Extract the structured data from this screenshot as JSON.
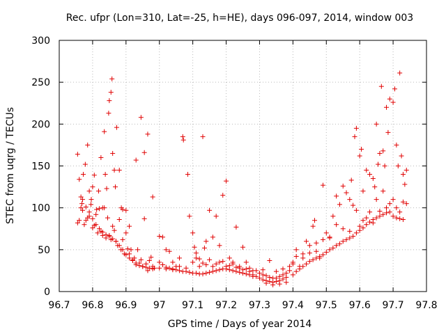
{
  "chart_data": {
    "type": "scatter",
    "title": "Rec. ufpr (Lon=310, Lat=-25, h=HE), days 096-097, 2014, window 003",
    "xlabel": "GPS time / Days of year 2014",
    "ylabel": "STEC from uqrg / TECUs",
    "xlim": [
      96.7,
      97.8
    ],
    "ylim": [
      0,
      300
    ],
    "xticks": [
      "96.7",
      "96.8",
      "96.9",
      "97",
      "97.1",
      "97.2",
      "97.3",
      "97.4",
      "97.5",
      "97.6",
      "97.7",
      "97.8"
    ],
    "xtick_values": [
      96.7,
      96.8,
      96.9,
      97.0,
      97.1,
      97.2,
      97.3,
      97.4,
      97.5,
      97.6,
      97.7,
      97.8
    ],
    "yticks": [
      "0",
      "50",
      "100",
      "150",
      "200",
      "250",
      "300"
    ],
    "ytick_values": [
      0,
      50,
      100,
      150,
      200,
      250,
      300
    ],
    "grid": true,
    "marker": "plus",
    "color": "#e00000",
    "points": [
      [
        96.755,
        164
      ],
      [
        96.76,
        134
      ],
      [
        96.765,
        113
      ],
      [
        96.768,
        105
      ],
      [
        96.772,
        140
      ],
      [
        96.778,
        152
      ],
      [
        96.785,
        175
      ],
      [
        96.79,
        120
      ],
      [
        96.796,
        110
      ],
      [
        96.8,
        125
      ],
      [
        96.805,
        139
      ],
      [
        96.812,
        98
      ],
      [
        96.818,
        120
      ],
      [
        96.825,
        160
      ],
      [
        96.83,
        100
      ],
      [
        96.835,
        191
      ],
      [
        96.838,
        140
      ],
      [
        96.842,
        123
      ],
      [
        96.848,
        213
      ],
      [
        96.85,
        228
      ],
      [
        96.855,
        238
      ],
      [
        96.858,
        254
      ],
      [
        96.86,
        165
      ],
      [
        96.865,
        145
      ],
      [
        96.868,
        125
      ],
      [
        96.872,
        196
      ],
      [
        96.88,
        145
      ],
      [
        96.886,
        100
      ],
      [
        96.89,
        98
      ],
      [
        96.9,
        97
      ],
      [
        96.91,
        78
      ],
      [
        96.93,
        157
      ],
      [
        96.945,
        208
      ],
      [
        96.955,
        166
      ],
      [
        96.965,
        188
      ],
      [
        96.98,
        113
      ],
      [
        96.755,
        82
      ],
      [
        96.76,
        85
      ],
      [
        96.765,
        100
      ],
      [
        96.77,
        97
      ],
      [
        96.775,
        80
      ],
      [
        96.78,
        85
      ],
      [
        96.785,
        88
      ],
      [
        96.79,
        90
      ],
      [
        96.795,
        104
      ],
      [
        96.8,
        76
      ],
      [
        96.805,
        79
      ],
      [
        96.81,
        92
      ],
      [
        96.815,
        70
      ],
      [
        96.82,
        99
      ],
      [
        96.825,
        72
      ],
      [
        96.83,
        67
      ],
      [
        96.835,
        100
      ],
      [
        96.84,
        64
      ],
      [
        96.845,
        88
      ],
      [
        96.85,
        67
      ],
      [
        96.855,
        62
      ],
      [
        96.86,
        78
      ],
      [
        96.865,
        73
      ],
      [
        96.87,
        60
      ],
      [
        96.875,
        55
      ],
      [
        96.88,
        86
      ],
      [
        96.885,
        50
      ],
      [
        96.89,
        62
      ],
      [
        96.895,
        45
      ],
      [
        96.9,
        70
      ],
      [
        96.905,
        51
      ],
      [
        96.91,
        45
      ],
      [
        96.915,
        50
      ],
      [
        96.92,
        37
      ],
      [
        96.925,
        40
      ],
      [
        96.93,
        32
      ],
      [
        96.935,
        50
      ],
      [
        96.94,
        34
      ],
      [
        96.945,
        38
      ],
      [
        96.95,
        30
      ],
      [
        96.955,
        87
      ],
      [
        96.96,
        33
      ],
      [
        96.965,
        25
      ],
      [
        96.97,
        37
      ],
      [
        96.975,
        41
      ],
      [
        96.98,
        30
      ],
      [
        96.985,
        28
      ],
      [
        96.77,
        110
      ],
      [
        96.78,
        101
      ],
      [
        96.79,
        95
      ],
      [
        96.8,
        87
      ],
      [
        96.81,
        80
      ],
      [
        96.82,
        75
      ],
      [
        96.83,
        71
      ],
      [
        96.84,
        68
      ],
      [
        96.85,
        66
      ],
      [
        96.86,
        63
      ],
      [
        96.87,
        60
      ],
      [
        96.88,
        55
      ],
      [
        96.89,
        50
      ],
      [
        96.9,
        44
      ],
      [
        96.91,
        40
      ],
      [
        96.92,
        38
      ],
      [
        96.93,
        34
      ],
      [
        96.94,
        31
      ],
      [
        96.95,
        30
      ],
      [
        96.96,
        29
      ],
      [
        96.97,
        28
      ],
      [
        96.98,
        27
      ],
      [
        97.0,
        66
      ],
      [
        97.01,
        65
      ],
      [
        97.02,
        50
      ],
      [
        97.03,
        48
      ],
      [
        97.04,
        35
      ],
      [
        97.05,
        30
      ],
      [
        97.06,
        40
      ],
      [
        97.07,
        185
      ],
      [
        97.072,
        181
      ],
      [
        97.085,
        140
      ],
      [
        97.09,
        90
      ],
      [
        97.1,
        70
      ],
      [
        97.105,
        53
      ],
      [
        97.11,
        46
      ],
      [
        97.12,
        39
      ],
      [
        97.13,
        185
      ],
      [
        97.135,
        52
      ],
      [
        97.14,
        60
      ],
      [
        97.15,
        97
      ],
      [
        97.16,
        65
      ],
      [
        97.17,
        90
      ],
      [
        97.18,
        55
      ],
      [
        97.19,
        115
      ],
      [
        97.2,
        132
      ],
      [
        97.21,
        40
      ],
      [
        97.22,
        35
      ],
      [
        97.23,
        77
      ],
      [
        97.24,
        30
      ],
      [
        97.25,
        53
      ],
      [
        97.26,
        35
      ],
      [
        97.27,
        28
      ],
      [
        97.28,
        20
      ],
      [
        97.0,
        35
      ],
      [
        97.01,
        32
      ],
      [
        97.02,
        29
      ],
      [
        97.03,
        28
      ],
      [
        97.04,
        27
      ],
      [
        97.05,
        26
      ],
      [
        97.06,
        25
      ],
      [
        97.07,
        24
      ],
      [
        97.08,
        24
      ],
      [
        97.09,
        23
      ],
      [
        97.1,
        22
      ],
      [
        97.11,
        22
      ],
      [
        97.12,
        21
      ],
      [
        97.13,
        21
      ],
      [
        97.14,
        22
      ],
      [
        97.15,
        23
      ],
      [
        97.16,
        24
      ],
      [
        97.17,
        25
      ],
      [
        97.18,
        26
      ],
      [
        97.19,
        27
      ],
      [
        97.2,
        27
      ],
      [
        97.21,
        26
      ],
      [
        97.22,
        25
      ],
      [
        97.23,
        24
      ],
      [
        97.24,
        23
      ],
      [
        97.25,
        22
      ],
      [
        97.26,
        21
      ],
      [
        97.27,
        20
      ],
      [
        97.28,
        18
      ],
      [
        97.0,
        28
      ],
      [
        97.02,
        27
      ],
      [
        97.04,
        26
      ],
      [
        97.06,
        30
      ],
      [
        97.08,
        28
      ],
      [
        97.1,
        35
      ],
      [
        97.12,
        30
      ],
      [
        97.14,
        32
      ],
      [
        97.16,
        30
      ],
      [
        97.18,
        35
      ],
      [
        97.2,
        30
      ],
      [
        97.22,
        33
      ],
      [
        97.24,
        28
      ],
      [
        97.26,
        27
      ],
      [
        97.28,
        25
      ],
      [
        97.11,
        40
      ],
      [
        97.13,
        34
      ],
      [
        97.15,
        38
      ],
      [
        97.17,
        33
      ],
      [
        97.19,
        36
      ],
      [
        97.21,
        31
      ],
      [
        97.23,
        29
      ],
      [
        97.25,
        26
      ],
      [
        97.27,
        24
      ],
      [
        97.29,
        18
      ],
      [
        97.3,
        16
      ],
      [
        97.31,
        14
      ],
      [
        97.32,
        13
      ],
      [
        97.33,
        12
      ],
      [
        97.34,
        11
      ],
      [
        97.35,
        12
      ],
      [
        97.36,
        13
      ],
      [
        97.37,
        15
      ],
      [
        97.38,
        17
      ],
      [
        97.3,
        22
      ],
      [
        97.31,
        20
      ],
      [
        97.32,
        19
      ],
      [
        97.33,
        17
      ],
      [
        97.34,
        16
      ],
      [
        97.35,
        16
      ],
      [
        97.36,
        18
      ],
      [
        97.37,
        20
      ],
      [
        97.38,
        22
      ],
      [
        97.39,
        25
      ],
      [
        97.29,
        25
      ],
      [
        97.31,
        26
      ],
      [
        97.33,
        37
      ],
      [
        97.35,
        24
      ],
      [
        97.37,
        27
      ],
      [
        97.39,
        30
      ],
      [
        97.4,
        33
      ],
      [
        97.32,
        10
      ],
      [
        97.34,
        8
      ],
      [
        97.36,
        9
      ],
      [
        97.38,
        11
      ],
      [
        97.4,
        20
      ],
      [
        97.41,
        24
      ],
      [
        97.42,
        27
      ],
      [
        97.43,
        30
      ],
      [
        97.44,
        33
      ],
      [
        97.45,
        36
      ],
      [
        97.46,
        38
      ],
      [
        97.47,
        40
      ],
      [
        97.48,
        42
      ],
      [
        97.49,
        44
      ],
      [
        97.5,
        47
      ],
      [
        97.51,
        50
      ],
      [
        97.52,
        52
      ],
      [
        97.53,
        55
      ],
      [
        97.54,
        57
      ],
      [
        97.55,
        60
      ],
      [
        97.56,
        62
      ],
      [
        97.57,
        64
      ],
      [
        97.58,
        66
      ],
      [
        97.59,
        70
      ],
      [
        97.6,
        73
      ],
      [
        97.61,
        76
      ],
      [
        97.62,
        80
      ],
      [
        97.63,
        83
      ],
      [
        97.64,
        86
      ],
      [
        97.65,
        88
      ],
      [
        97.66,
        90
      ],
      [
        97.67,
        92
      ],
      [
        97.68,
        94
      ],
      [
        97.69,
        95
      ],
      [
        97.7,
        90
      ],
      [
        97.71,
        88
      ],
      [
        97.72,
        87
      ],
      [
        97.73,
        86
      ],
      [
        97.4,
        35
      ],
      [
        97.41,
        42
      ],
      [
        97.42,
        30
      ],
      [
        97.43,
        45
      ],
      [
        97.44,
        60
      ],
      [
        97.45,
        55
      ],
      [
        97.46,
        78
      ],
      [
        97.465,
        85
      ],
      [
        97.47,
        48
      ],
      [
        97.48,
        40
      ],
      [
        97.49,
        127
      ],
      [
        97.5,
        70
      ],
      [
        97.51,
        64
      ],
      [
        97.52,
        90
      ],
      [
        97.53,
        114
      ],
      [
        97.54,
        104
      ],
      [
        97.55,
        126
      ],
      [
        97.56,
        118
      ],
      [
        97.57,
        110
      ],
      [
        97.575,
        133
      ],
      [
        97.58,
        103
      ],
      [
        97.585,
        185
      ],
      [
        97.59,
        195
      ],
      [
        97.6,
        162
      ],
      [
        97.605,
        170
      ],
      [
        97.61,
        120
      ],
      [
        97.62,
        145
      ],
      [
        97.63,
        140
      ],
      [
        97.64,
        135
      ],
      [
        97.645,
        125
      ],
      [
        97.65,
        200
      ],
      [
        97.655,
        152
      ],
      [
        97.66,
        165
      ],
      [
        97.665,
        245
      ],
      [
        97.67,
        168
      ],
      [
        97.675,
        150
      ],
      [
        97.68,
        220
      ],
      [
        97.685,
        190
      ],
      [
        97.69,
        230
      ],
      [
        97.7,
        226
      ],
      [
        97.705,
        242
      ],
      [
        97.71,
        175
      ],
      [
        97.715,
        150
      ],
      [
        97.72,
        261
      ],
      [
        97.725,
        162
      ],
      [
        97.73,
        140
      ],
      [
        97.735,
        128
      ],
      [
        97.74,
        145
      ],
      [
        97.41,
        50
      ],
      [
        97.43,
        40
      ],
      [
        97.45,
        46
      ],
      [
        97.47,
        58
      ],
      [
        97.49,
        62
      ],
      [
        97.51,
        65
      ],
      [
        97.53,
        80
      ],
      [
        97.55,
        75
      ],
      [
        97.57,
        72
      ],
      [
        97.59,
        97
      ],
      [
        97.61,
        85
      ],
      [
        97.63,
        95
      ],
      [
        97.65,
        110
      ],
      [
        97.67,
        120
      ],
      [
        97.69,
        105
      ],
      [
        97.71,
        100
      ],
      [
        97.73,
        107
      ],
      [
        97.74,
        105
      ],
      [
        97.72,
        95
      ],
      [
        97.7,
        110
      ],
      [
        97.68,
        100
      ],
      [
        97.66,
        96
      ],
      [
        97.64,
        82
      ],
      [
        97.62,
        88
      ],
      [
        97.6,
        78
      ]
    ]
  }
}
